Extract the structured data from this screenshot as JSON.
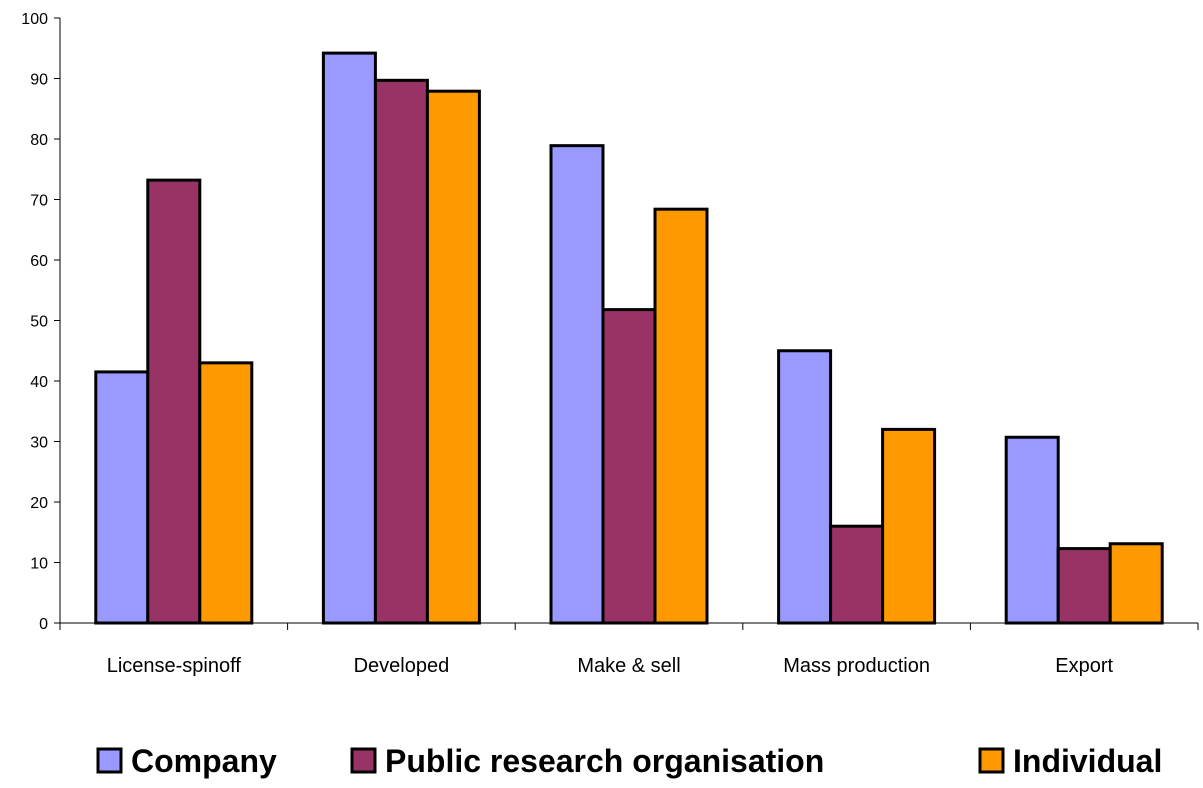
{
  "chart_data": {
    "type": "bar",
    "title": "",
    "xlabel": "",
    "ylabel": "",
    "categories": [
      "License-spinoff",
      "Developed",
      "Make & sell",
      "Mass production",
      "Export"
    ],
    "series": [
      {
        "name": "Company",
        "color": "#9999ff",
        "values": [
          41.5,
          94.2,
          78.9,
          45.0,
          30.7
        ]
      },
      {
        "name": "Public research organisation",
        "color": "#993366",
        "values": [
          73.2,
          89.7,
          51.8,
          16.0,
          12.3
        ]
      },
      {
        "name": "Individual",
        "color": "#ff9900",
        "values": [
          43.0,
          87.9,
          68.4,
          32.0,
          13.1
        ]
      }
    ],
    "ylim": [
      0,
      100
    ],
    "yticks": [
      0,
      10,
      20,
      30,
      40,
      50,
      60,
      70,
      80,
      90,
      100
    ],
    "grid": false,
    "legend": "bottom"
  }
}
